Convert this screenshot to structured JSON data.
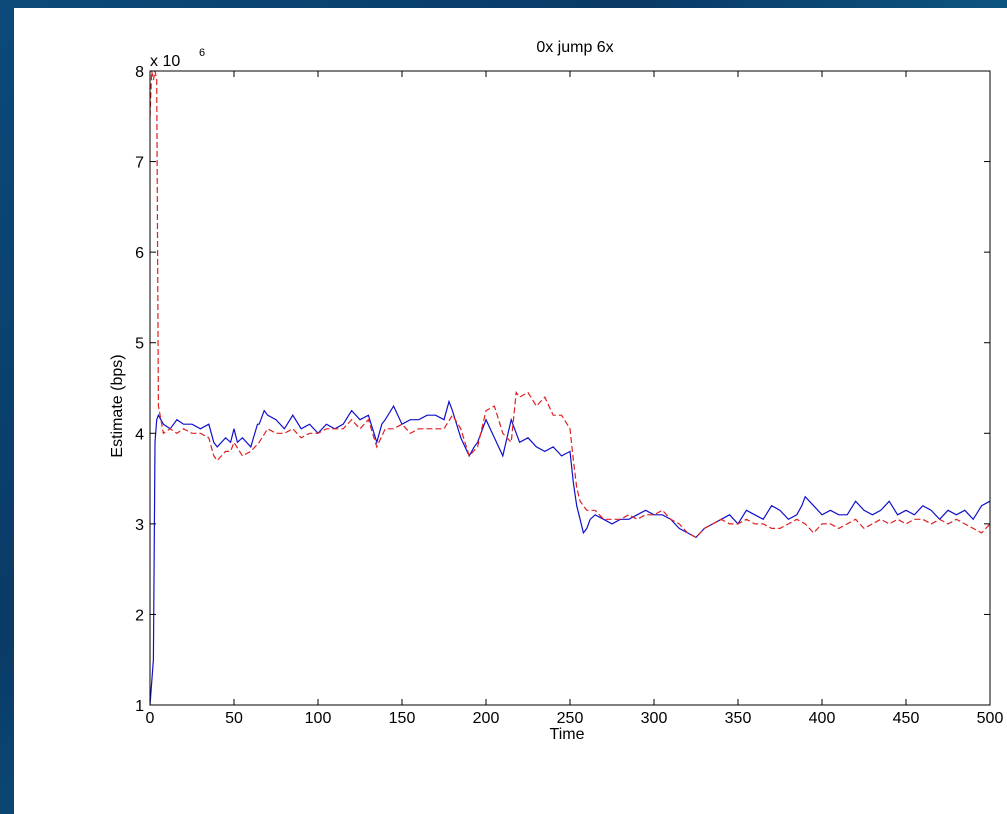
{
  "colors": {
    "blue_series": "#1010cc",
    "red_series": "#e02020",
    "background": "#0b4a7a"
  },
  "chart_data": {
    "type": "line",
    "title": "0x jump 6x",
    "xlabel": "Time",
    "ylabel": "Estimate (bps)",
    "y_multiplier": "x 10",
    "y_exponent": "6",
    "xlim": [
      0,
      500
    ],
    "ylim": [
      1,
      8
    ],
    "xticks": [
      0,
      50,
      100,
      150,
      200,
      250,
      300,
      350,
      400,
      450,
      500
    ],
    "yticks": [
      1,
      2,
      3,
      4,
      5,
      6,
      7,
      8
    ],
    "grid": false,
    "series": [
      {
        "style": "solid",
        "color": "#1010cc",
        "x": [
          0,
          2,
          3,
          4,
          5,
          8,
          12,
          16,
          20,
          25,
          30,
          35,
          38,
          40,
          45,
          48,
          50,
          52,
          55,
          60,
          64,
          65,
          68,
          70,
          75,
          80,
          85,
          90,
          95,
          100,
          105,
          110,
          115,
          120,
          125,
          130,
          135,
          138,
          140,
          145,
          150,
          155,
          160,
          165,
          170,
          175,
          178,
          180,
          185,
          190,
          193,
          195,
          200,
          205,
          210,
          215,
          220,
          225,
          230,
          235,
          240,
          245,
          250,
          252,
          254,
          256,
          258,
          260,
          262,
          265,
          270,
          275,
          280,
          285,
          290,
          295,
          300,
          305,
          310,
          315,
          320,
          325,
          330,
          335,
          340,
          345,
          350,
          355,
          360,
          365,
          370,
          375,
          380,
          385,
          388,
          390,
          395,
          400,
          405,
          410,
          415,
          420,
          425,
          430,
          435,
          440,
          445,
          450,
          455,
          460,
          465,
          470,
          475,
          480,
          485,
          490,
          495,
          500
        ],
        "y": [
          1.0,
          1.5,
          3.9,
          4.15,
          4.2,
          4.1,
          4.05,
          4.15,
          4.1,
          4.1,
          4.05,
          4.1,
          3.9,
          3.85,
          3.95,
          3.9,
          4.05,
          3.9,
          3.95,
          3.85,
          4.1,
          4.1,
          4.25,
          4.2,
          4.15,
          4.05,
          4.2,
          4.05,
          4.1,
          4.0,
          4.1,
          4.05,
          4.1,
          4.25,
          4.15,
          4.2,
          3.9,
          4.1,
          4.15,
          4.3,
          4.1,
          4.15,
          4.15,
          4.2,
          4.2,
          4.15,
          4.35,
          4.25,
          3.95,
          3.75,
          3.85,
          3.9,
          4.15,
          3.95,
          3.75,
          4.15,
          3.9,
          3.95,
          3.85,
          3.8,
          3.85,
          3.75,
          3.8,
          3.45,
          3.2,
          3.05,
          2.9,
          2.95,
          3.05,
          3.1,
          3.05,
          3.0,
          3.05,
          3.05,
          3.1,
          3.15,
          3.1,
          3.1,
          3.05,
          2.95,
          2.9,
          2.85,
          2.95,
          3.0,
          3.05,
          3.1,
          3.0,
          3.15,
          3.1,
          3.05,
          3.2,
          3.15,
          3.05,
          3.1,
          3.2,
          3.3,
          3.2,
          3.1,
          3.15,
          3.1,
          3.1,
          3.25,
          3.15,
          3.1,
          3.15,
          3.25,
          3.1,
          3.15,
          3.1,
          3.2,
          3.15,
          3.05,
          3.15,
          3.1,
          3.15,
          3.05,
          3.2,
          3.25
        ]
      },
      {
        "style": "dashed",
        "color": "#e02020",
        "x": [
          0,
          1,
          2,
          3,
          4,
          5,
          6,
          8,
          12,
          16,
          20,
          25,
          30,
          35,
          38,
          40,
          45,
          48,
          50,
          55,
          60,
          65,
          70,
          75,
          80,
          85,
          90,
          95,
          100,
          105,
          110,
          115,
          120,
          125,
          130,
          135,
          140,
          145,
          150,
          155,
          160,
          165,
          170,
          175,
          180,
          185,
          190,
          195,
          200,
          205,
          210,
          215,
          218,
          220,
          225,
          230,
          235,
          240,
          245,
          250,
          252,
          254,
          256,
          258,
          260,
          265,
          270,
          275,
          280,
          285,
          290,
          295,
          300,
          305,
          310,
          315,
          320,
          325,
          330,
          335,
          340,
          345,
          350,
          355,
          360,
          365,
          370,
          375,
          380,
          385,
          390,
          395,
          400,
          405,
          410,
          415,
          420,
          425,
          430,
          435,
          440,
          445,
          450,
          455,
          460,
          465,
          470,
          475,
          480,
          485,
          490,
          495,
          500
        ],
        "y": [
          7.5,
          8.0,
          7.9,
          8.0,
          7.9,
          4.3,
          4.2,
          4.0,
          4.05,
          4.0,
          4.05,
          4.0,
          4.0,
          3.95,
          3.75,
          3.7,
          3.8,
          3.8,
          3.9,
          3.75,
          3.8,
          3.9,
          4.05,
          4.0,
          4.0,
          4.05,
          3.95,
          4.0,
          4.0,
          4.05,
          4.05,
          4.05,
          4.15,
          4.05,
          4.15,
          3.85,
          4.05,
          4.05,
          4.1,
          4.0,
          4.05,
          4.05,
          4.05,
          4.05,
          4.2,
          4.05,
          3.75,
          3.85,
          4.25,
          4.3,
          4.0,
          3.9,
          4.45,
          4.4,
          4.45,
          4.3,
          4.4,
          4.2,
          4.2,
          4.05,
          3.7,
          3.4,
          3.25,
          3.2,
          3.15,
          3.15,
          3.05,
          3.05,
          3.05,
          3.1,
          3.05,
          3.1,
          3.1,
          3.15,
          3.05,
          3.0,
          2.9,
          2.85,
          2.95,
          3.0,
          3.05,
          3.0,
          3.0,
          3.05,
          3.0,
          3.0,
          2.95,
          2.95,
          3.0,
          3.05,
          3.0,
          2.9,
          3.0,
          3.0,
          2.95,
          3.0,
          3.05,
          2.95,
          3.0,
          3.05,
          3.0,
          3.05,
          3.0,
          3.05,
          3.05,
          3.0,
          3.05,
          3.0,
          3.05,
          3.0,
          2.95,
          2.9,
          3.0
        ]
      }
    ]
  }
}
